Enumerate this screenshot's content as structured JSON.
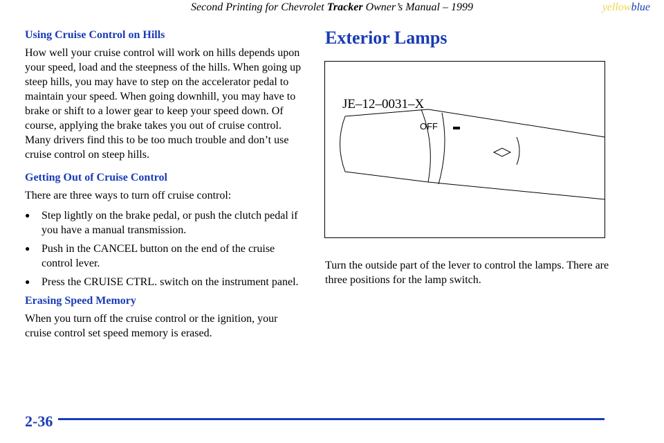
{
  "header": {
    "title_pre": "Second Printing for Chevrolet ",
    "title_bold": "Tracker",
    "title_post": " Owner’s Manual – 1999",
    "tag_yellow": "yellow",
    "tag_blue": "blue"
  },
  "left": {
    "h1": "Using Cruise Control on Hills",
    "p1": "How well your cruise control will work on hills depends upon your speed, load and the steepness of the hills. When going up steep hills, you may have to step on the accelerator pedal to maintain your speed. When going downhill, you may have to brake or shift to a lower gear to keep your speed down. Of course, applying the brake takes you out of cruise control. Many drivers find this to be too much trouble and don’t use cruise control on steep hills.",
    "h2": "Getting Out of Cruise Control",
    "p2": "There are three ways to turn off cruise control:",
    "bullets": [
      "Step lightly on the brake pedal, or push the clutch pedal if you have a manual transmission.",
      "Push in the CANCEL button on the end of the cruise control lever.",
      "Press the CRUISE CTRL. switch on the instrument panel."
    ],
    "h3": "Erasing Speed Memory",
    "p3": "When you turn off the cruise control or the ignition, your cruise control set speed memory is erased."
  },
  "right": {
    "title": "Exterior Lamps",
    "figure_code": "JE–12–0031–X",
    "figure_off": "OFF",
    "p1": "Turn the outside part of the lever to control the lamps. There are three positions for the lamp switch."
  },
  "footer": {
    "page": "2-36"
  }
}
